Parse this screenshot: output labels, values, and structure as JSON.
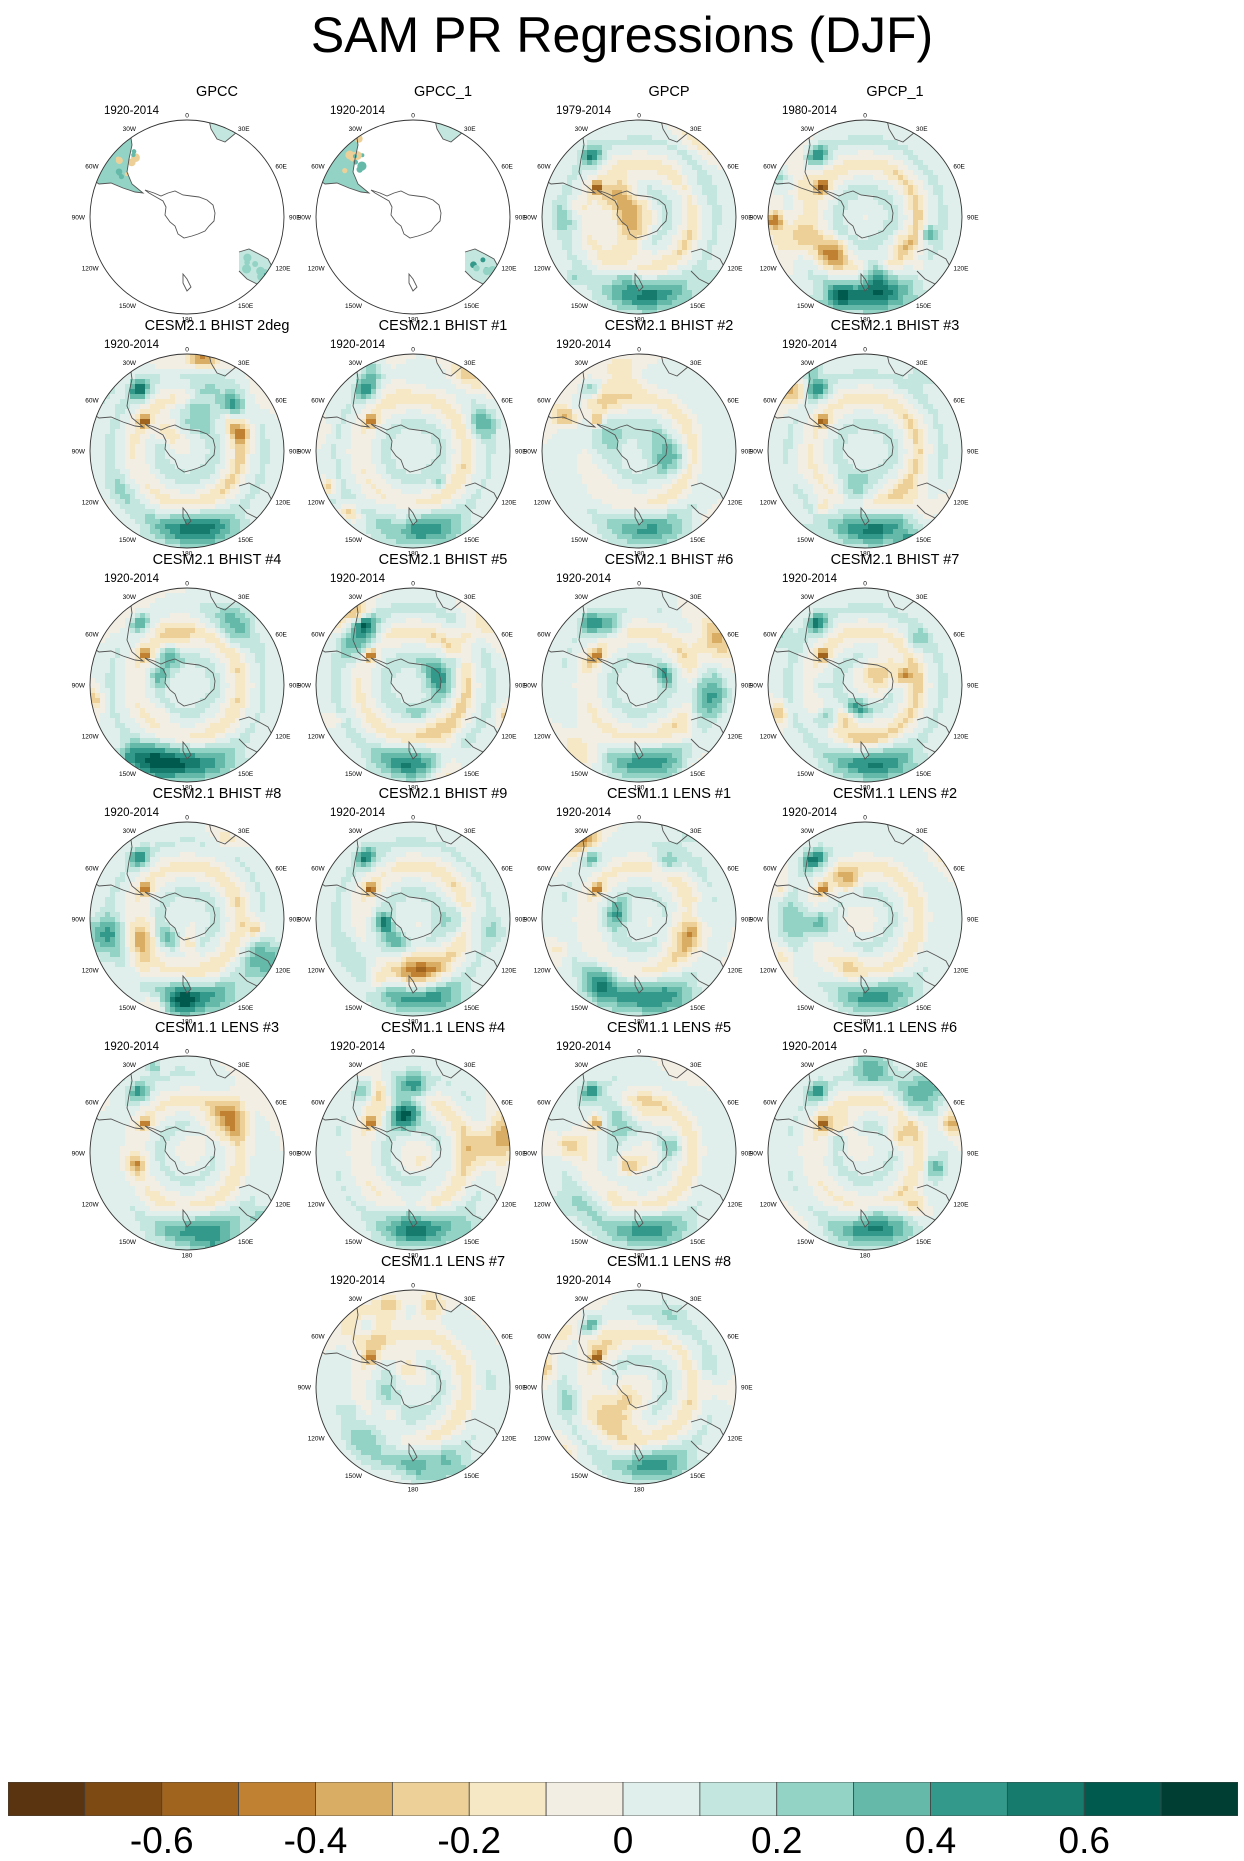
{
  "title": "SAM PR Regressions (DJF)",
  "map_labels": {
    "lon_0": "0",
    "lon_30w": "30W",
    "lon_30e": "30E",
    "lon_60w": "60W",
    "lon_60e": "60E",
    "lon_90w": "90W",
    "lon_90e": "90E",
    "lon_120w": "120W",
    "lon_120e": "120E",
    "lon_150w": "150W",
    "lon_150e": "150E",
    "lon_180": "180"
  },
  "chart_data": {
    "type": "heatmap",
    "projection": "south polar stereographic",
    "variable": "SAM PR Regressions (DJF)",
    "panels": [
      {
        "title": "GPCC",
        "period": "1920-2014",
        "data_coverage": "land only"
      },
      {
        "title": "GPCC_1",
        "period": "1920-2014",
        "data_coverage": "land only"
      },
      {
        "title": "GPCP",
        "period": "1979-2014"
      },
      {
        "title": "GPCP_1",
        "period": "1980-2014"
      },
      {
        "title": "CESM2.1 BHIST 2deg",
        "period": "1920-2014"
      },
      {
        "title": "CESM2.1 BHIST #1",
        "period": "1920-2014"
      },
      {
        "title": "CESM2.1 BHIST #2",
        "period": "1920-2014"
      },
      {
        "title": "CESM2.1 BHIST #3",
        "period": "1920-2014"
      },
      {
        "title": "CESM2.1 BHIST #4",
        "period": "1920-2014"
      },
      {
        "title": "CESM2.1 BHIST #5",
        "period": "1920-2014"
      },
      {
        "title": "CESM2.1 BHIST #6",
        "period": "1920-2014"
      },
      {
        "title": "CESM2.1 BHIST #7",
        "period": "1920-2014"
      },
      {
        "title": "CESM2.1 BHIST #8",
        "period": "1920-2014"
      },
      {
        "title": "CESM2.1 BHIST #9",
        "period": "1920-2014"
      },
      {
        "title": "CESM1.1 LENS #1",
        "period": "1920-2014"
      },
      {
        "title": "CESM1.1 LENS #2",
        "period": "1920-2014"
      },
      {
        "title": "CESM1.1 LENS #3",
        "period": "1920-2014"
      },
      {
        "title": "CESM1.1 LENS #4",
        "period": "1920-2014"
      },
      {
        "title": "CESM1.1 LENS #5",
        "period": "1920-2014"
      },
      {
        "title": "CESM1.1 LENS #6",
        "period": "1920-2014"
      },
      {
        "title": "CESM1.1 LENS #7",
        "period": "1920-2014"
      },
      {
        "title": "CESM1.1 LENS #8",
        "period": "1920-2014"
      }
    ],
    "colorbar": {
      "levels": [
        -0.7,
        -0.6,
        -0.5,
        -0.4,
        -0.3,
        -0.2,
        -0.1,
        0,
        0.1,
        0.2,
        0.3,
        0.4,
        0.5,
        0.6,
        0.7
      ],
      "colors": [
        "#5a3410",
        "#7d4a14",
        "#a0641e",
        "#c08232",
        "#d9ad64",
        "#ecd098",
        "#f6e8c4",
        "#f3eee4",
        "#e0efeb",
        "#c3e7de",
        "#93d3c5",
        "#64b9a9",
        "#33998a",
        "#167a6c",
        "#005a4e",
        "#003d33"
      ],
      "tick_labels": [
        "-0.6",
        "-0.4",
        "-0.2",
        "0",
        "0.2",
        "0.4",
        "0.6"
      ],
      "tick_values": [
        -0.6,
        -0.4,
        -0.2,
        0,
        0.2,
        0.4,
        0.6
      ]
    }
  }
}
